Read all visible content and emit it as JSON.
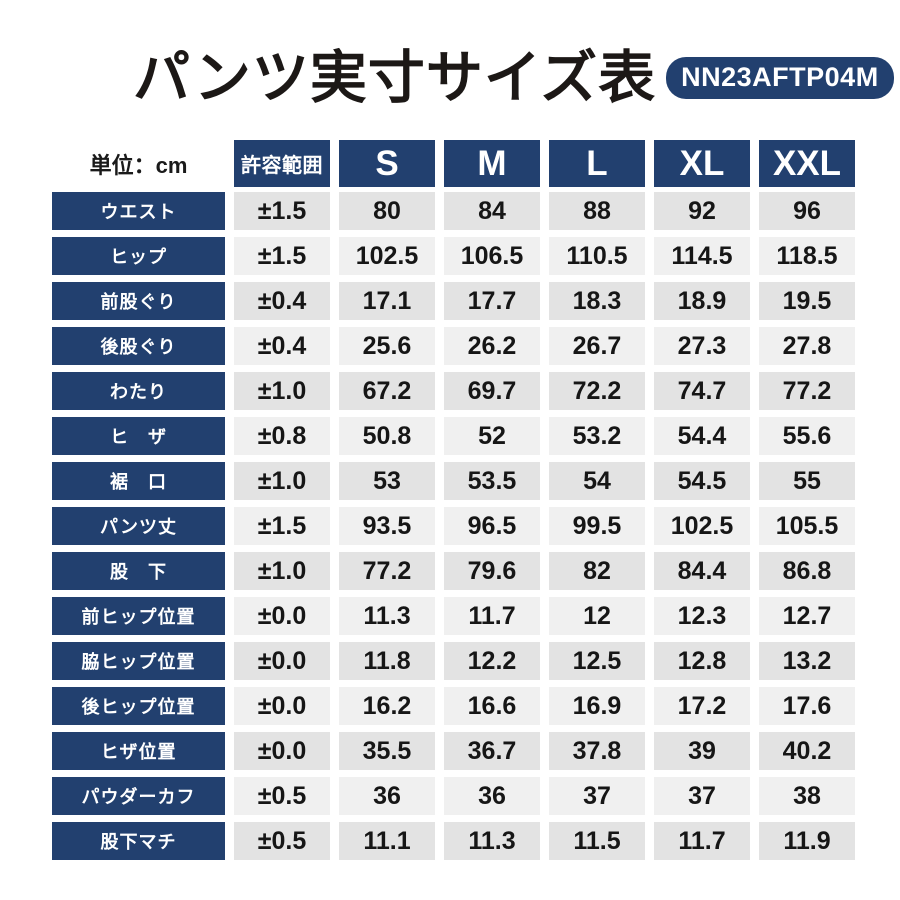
{
  "page": {
    "title": "パンツ実寸サイズ表",
    "model_code": "NN23AFTP04M",
    "unit_label": "単位：cm"
  },
  "colors": {
    "navy": "#22406f",
    "shade_dark": "#e3e3e3",
    "shade_light": "#f0f0f0",
    "title_color": "#1c1816",
    "value_color": "#161616"
  },
  "chart_data": {
    "type": "table",
    "title": "パンツ実寸サイズ表",
    "model_code": "NN23AFTP04M",
    "unit": "cm",
    "unit_label": "単位：cm",
    "columns": [
      "許容範囲",
      "S",
      "M",
      "L",
      "XL",
      "XXL"
    ],
    "rows": [
      {
        "label": "ウエスト",
        "tolerance": "±1.5",
        "values": [
          80,
          84,
          88,
          92,
          96
        ]
      },
      {
        "label": "ヒップ",
        "tolerance": "±1.5",
        "values": [
          102.5,
          106.5,
          110.5,
          114.5,
          118.5
        ]
      },
      {
        "label": "前股ぐり",
        "tolerance": "±0.4",
        "values": [
          17.1,
          17.7,
          18.3,
          18.9,
          19.5
        ]
      },
      {
        "label": "後股ぐり",
        "tolerance": "±0.4",
        "values": [
          25.6,
          26.2,
          26.7,
          27.3,
          27.8
        ]
      },
      {
        "label": "わたり",
        "tolerance": "±1.0",
        "values": [
          67.2,
          69.7,
          72.2,
          74.7,
          77.2
        ]
      },
      {
        "label": "ヒ　ザ",
        "tolerance": "±0.8",
        "values": [
          50.8,
          52,
          53.2,
          54.4,
          55.6
        ]
      },
      {
        "label": "裾　口",
        "tolerance": "±1.0",
        "values": [
          53,
          53.5,
          54,
          54.5,
          55
        ]
      },
      {
        "label": "パンツ丈",
        "tolerance": "±1.5",
        "values": [
          93.5,
          96.5,
          99.5,
          102.5,
          105.5
        ]
      },
      {
        "label": "股　下",
        "tolerance": "±1.0",
        "values": [
          77.2,
          79.6,
          82,
          84.4,
          86.8
        ]
      },
      {
        "label": "前ヒップ位置",
        "tolerance": "±0.0",
        "values": [
          11.3,
          11.7,
          12,
          12.3,
          12.7
        ]
      },
      {
        "label": "脇ヒップ位置",
        "tolerance": "±0.0",
        "values": [
          11.8,
          12.2,
          12.5,
          12.8,
          13.2
        ]
      },
      {
        "label": "後ヒップ位置",
        "tolerance": "±0.0",
        "values": [
          16.2,
          16.6,
          16.9,
          17.2,
          17.6
        ]
      },
      {
        "label": "ヒザ位置",
        "tolerance": "±0.0",
        "values": [
          35.5,
          36.7,
          37.8,
          39,
          40.2
        ]
      },
      {
        "label": "パウダーカフ",
        "tolerance": "±0.5",
        "values": [
          36,
          36,
          37,
          37,
          38
        ]
      },
      {
        "label": "股下マチ",
        "tolerance": "±0.5",
        "values": [
          11.1,
          11.3,
          11.5,
          11.7,
          11.9
        ]
      }
    ]
  }
}
